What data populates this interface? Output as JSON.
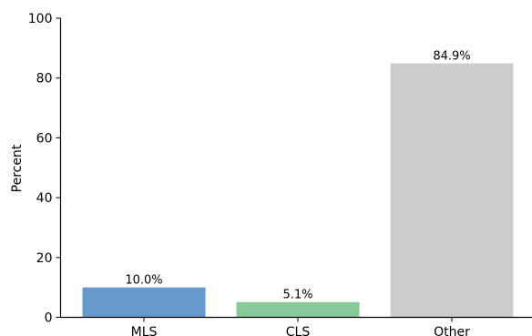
{
  "chart_data": {
    "type": "bar",
    "title": "",
    "xlabel": "",
    "ylabel": "Percent",
    "categories": [
      "MLS",
      "CLS",
      "Other"
    ],
    "values": [
      10.0,
      5.1,
      84.9
    ],
    "data_labels": [
      "10.0%",
      "5.1%",
      "84.9%"
    ],
    "colors": [
      "#6699cc",
      "#88c999",
      "#cccccc"
    ],
    "ylim": [
      0,
      100
    ],
    "yticks": [
      0,
      20,
      40,
      60,
      80,
      100
    ],
    "grid": false,
    "legend": "none"
  }
}
